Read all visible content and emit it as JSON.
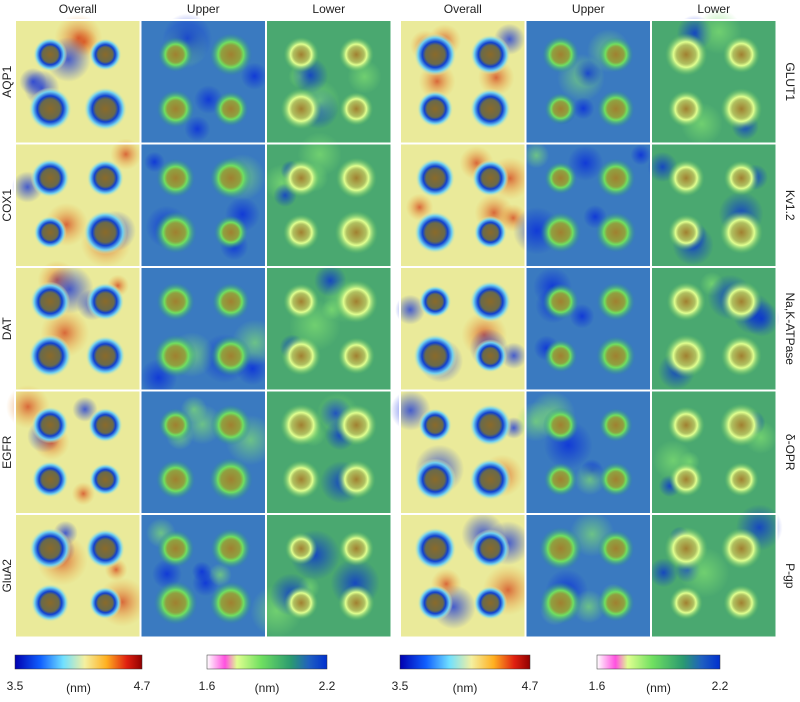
{
  "left": {
    "columns": [
      "Overall",
      "Upper",
      "Lower"
    ],
    "rows": [
      "AQP1",
      "COX1",
      "DAT",
      "EGFR",
      "GluA2"
    ]
  },
  "right": {
    "columns": [
      "Overall",
      "Upper",
      "Lower"
    ],
    "rows": [
      "GLUT1",
      "Kv1.2",
      "Na,K-ATPase",
      "δ-OPR",
      "P-gp"
    ]
  },
  "colorbars": [
    {
      "min": 3.5,
      "unit": "(nm)",
      "max": 4.7
    },
    {
      "min": 1.6,
      "unit": "(nm)",
      "max": 2.2
    },
    {
      "min": 3.5,
      "unit": "(nm)",
      "max": 4.7
    },
    {
      "min": 1.6,
      "unit": "(nm)",
      "max": 2.2
    }
  ]
}
